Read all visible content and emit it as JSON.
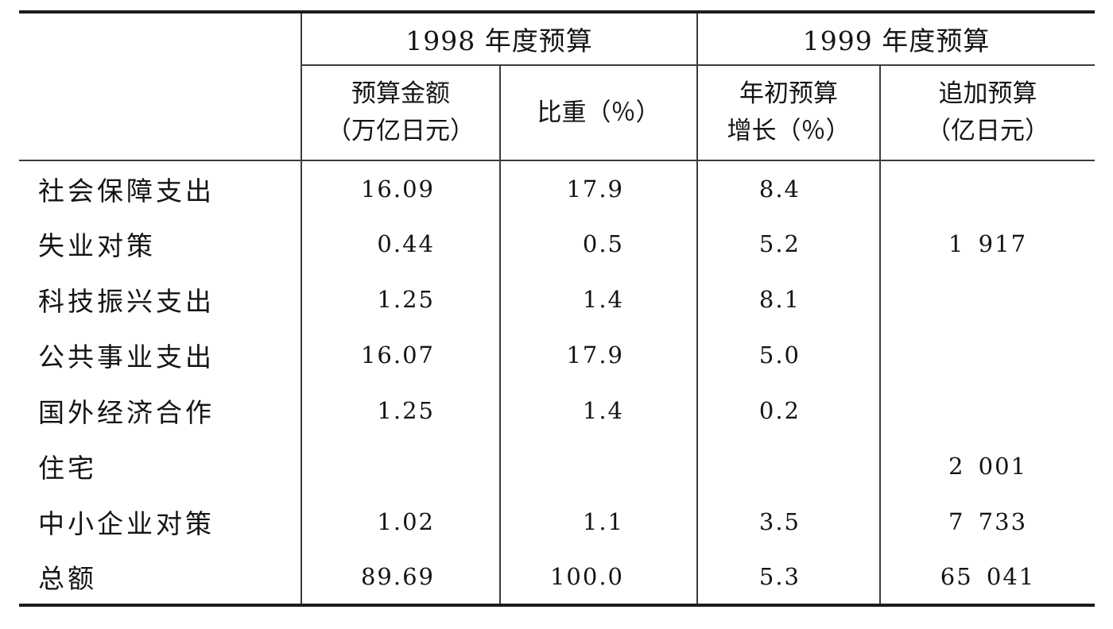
{
  "table": {
    "header": {
      "group_1998": "1998 年度预算",
      "group_1999": "1999 年度预算",
      "col_amount_line1": "预算金额",
      "col_amount_line2": "（万亿日元）",
      "col_share": "比重（％）",
      "col_growth_line1": "年初预算",
      "col_growth_line2": "增长（％）",
      "col_supp_line1": "追加预算",
      "col_supp_line2": "（亿日元）"
    },
    "rows": [
      {
        "label": "社会保障支出",
        "amount": "16.09",
        "share": "17.9",
        "growth": "8.4",
        "supplement": ""
      },
      {
        "label": "失业对策",
        "amount": "0.44",
        "share": "0.5",
        "growth": "5.2",
        "supplement": "1 917"
      },
      {
        "label": "科技振兴支出",
        "amount": "1.25",
        "share": "1.4",
        "growth": "8.1",
        "supplement": ""
      },
      {
        "label": "公共事业支出",
        "amount": "16.07",
        "share": "17.9",
        "growth": "5.0",
        "supplement": ""
      },
      {
        "label": "国外经济合作",
        "amount": "1.25",
        "share": "1.4",
        "growth": "0.2",
        "supplement": ""
      },
      {
        "label": "住宅",
        "amount": "",
        "share": "",
        "growth": "",
        "supplement": "2 001"
      },
      {
        "label": "中小企业对策",
        "amount": "1.02",
        "share": "1.1",
        "growth": "3.5",
        "supplement": "7 733"
      },
      {
        "label": "总额",
        "amount": "89.69",
        "share": "100.0",
        "growth": "5.3",
        "supplement": "65 041"
      }
    ],
    "line_color": "#3c3c3c",
    "rule_color": "#1c1c1c"
  }
}
